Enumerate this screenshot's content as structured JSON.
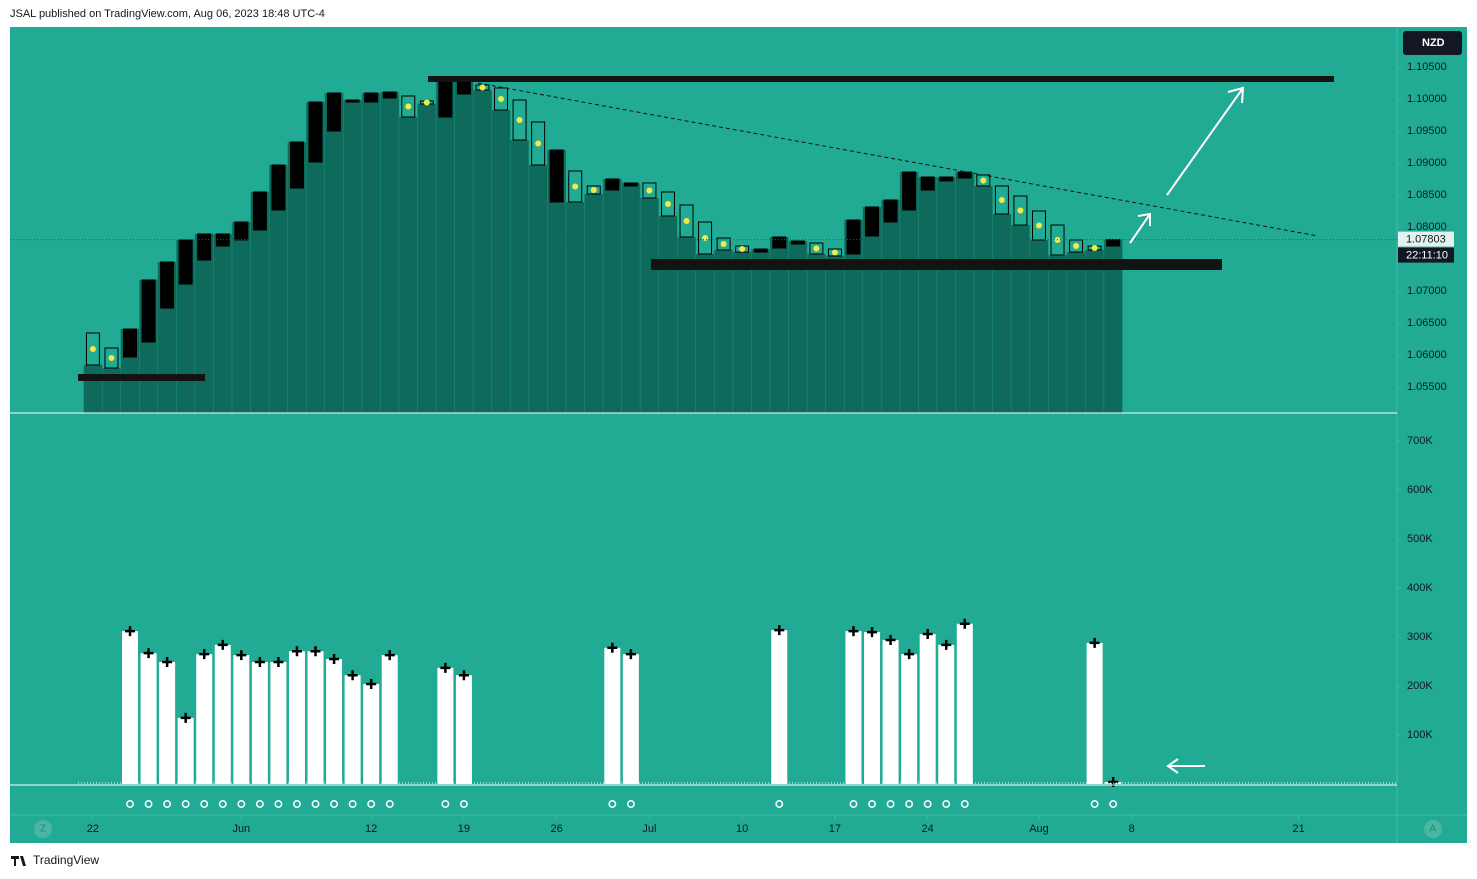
{
  "header": "JSAL published on TradingView.com, Aug 06, 2023 18:48 UTC-4",
  "footer": "TradingView",
  "chart_data": {
    "type": "candlestick",
    "currency": "NZD",
    "last_price": 1.07803,
    "countdown": "22:11:10",
    "xlim": [
      -4.47,
      70.3
    ],
    "xticks": [
      {
        "value": 0,
        "label": "22"
      },
      {
        "value": 8,
        "label": "Jun"
      },
      {
        "value": 15,
        "label": "12"
      },
      {
        "value": 20,
        "label": "19"
      },
      {
        "value": 25,
        "label": "26"
      },
      {
        "value": 30,
        "label": "Jul"
      },
      {
        "value": 35,
        "label": "10"
      },
      {
        "value": 40,
        "label": "17"
      },
      {
        "value": 45,
        "label": "24"
      },
      {
        "value": 51,
        "label": "Aug"
      },
      {
        "value": 56,
        "label": "8"
      },
      {
        "value": 65,
        "label": "21"
      }
    ],
    "ylim": [
      1.0509375,
      1.11125
    ],
    "yticks": [
      {
        "value": 1.105,
        "label": "1.10500"
      },
      {
        "value": 1.1,
        "label": "1.10000"
      },
      {
        "value": 1.095,
        "label": "1.09500"
      },
      {
        "value": 1.09,
        "label": "1.09000"
      },
      {
        "value": 1.085,
        "label": "1.08500"
      },
      {
        "value": 1.08,
        "label": "1.08000"
      },
      {
        "value": 1.07,
        "label": "1.07000"
      },
      {
        "value": 1.065,
        "label": "1.06500"
      },
      {
        "value": 1.06,
        "label": "1.06000"
      },
      {
        "value": 1.055,
        "label": "1.05500"
      }
    ],
    "open": [
      1.06344,
      1.06109,
      1.05969,
      1.06203,
      1.06734,
      1.07109,
      1.07484,
      1.07703,
      1.07797,
      1.07953,
      1.08266,
      1.08609,
      1.09016,
      1.095,
      1.09953,
      1.09953,
      1.10016,
      1.10047,
      1.09969,
      1.09719,
      1.10078,
      1.10219,
      1.10172,
      1.09984,
      1.09641,
      1.08391,
      1.08875,
      1.08641,
      1.08578,
      1.08641,
      1.08688,
      1.08547,
      1.08344,
      1.08078,
      1.07828,
      1.07703,
      1.07609,
      1.07672,
      1.07734,
      1.0775,
      1.07656,
      1.07578,
      1.07859,
      1.08078,
      1.08266,
      1.08578,
      1.08719,
      1.08766,
      1.08813,
      1.08641,
      1.08484,
      1.0825,
      1.08031,
      1.07797,
      1.07703,
      1.07703
    ],
    "close": [
      1.05844,
      1.05797,
      1.06406,
      1.07172,
      1.07453,
      1.07797,
      1.07891,
      1.07891,
      1.08078,
      1.08547,
      1.08969,
      1.09328,
      1.09953,
      1.10094,
      1.09984,
      1.10094,
      1.10109,
      1.09719,
      1.09922,
      1.10297,
      1.10281,
      1.10141,
      1.09828,
      1.09359,
      1.08969,
      1.09203,
      1.08391,
      1.08516,
      1.0875,
      1.08688,
      1.08453,
      1.08172,
      1.07844,
      1.07578,
      1.07641,
      1.07609,
      1.07656,
      1.07844,
      1.07781,
      1.07578,
      1.07547,
      1.08109,
      1.08313,
      1.08422,
      1.08859,
      1.08781,
      1.08781,
      1.08859,
      1.08641,
      1.08203,
      1.08031,
      1.07797,
      1.07563,
      1.07609,
      1.07641,
      1.07803
    ],
    "volume": {
      "ylim": [
        0,
        757143
      ],
      "yticks": [
        {
          "value": 700000,
          "label": "700K"
        },
        {
          "value": 600000,
          "label": "600K"
        },
        {
          "value": 500000,
          "label": "500K"
        },
        {
          "value": 400000,
          "label": "400K"
        },
        {
          "value": 300000,
          "label": "300K"
        },
        {
          "value": 200000,
          "label": "200K"
        },
        {
          "value": 100000,
          "label": "100K"
        }
      ],
      "values": [
        null,
        null,
        312000,
        267000,
        249000,
        135000,
        265000,
        284000,
        263000,
        249000,
        249000,
        271000,
        271000,
        255000,
        222000,
        204000,
        263000,
        null,
        null,
        237000,
        222000,
        null,
        null,
        null,
        null,
        null,
        null,
        null,
        278000,
        265000,
        null,
        null,
        null,
        null,
        null,
        null,
        null,
        314000,
        null,
        null,
        null,
        312000,
        310000,
        294000,
        265000,
        306000,
        284000,
        327000,
        null,
        null,
        null,
        null,
        null,
        null,
        288000,
        4000
      ]
    }
  }
}
